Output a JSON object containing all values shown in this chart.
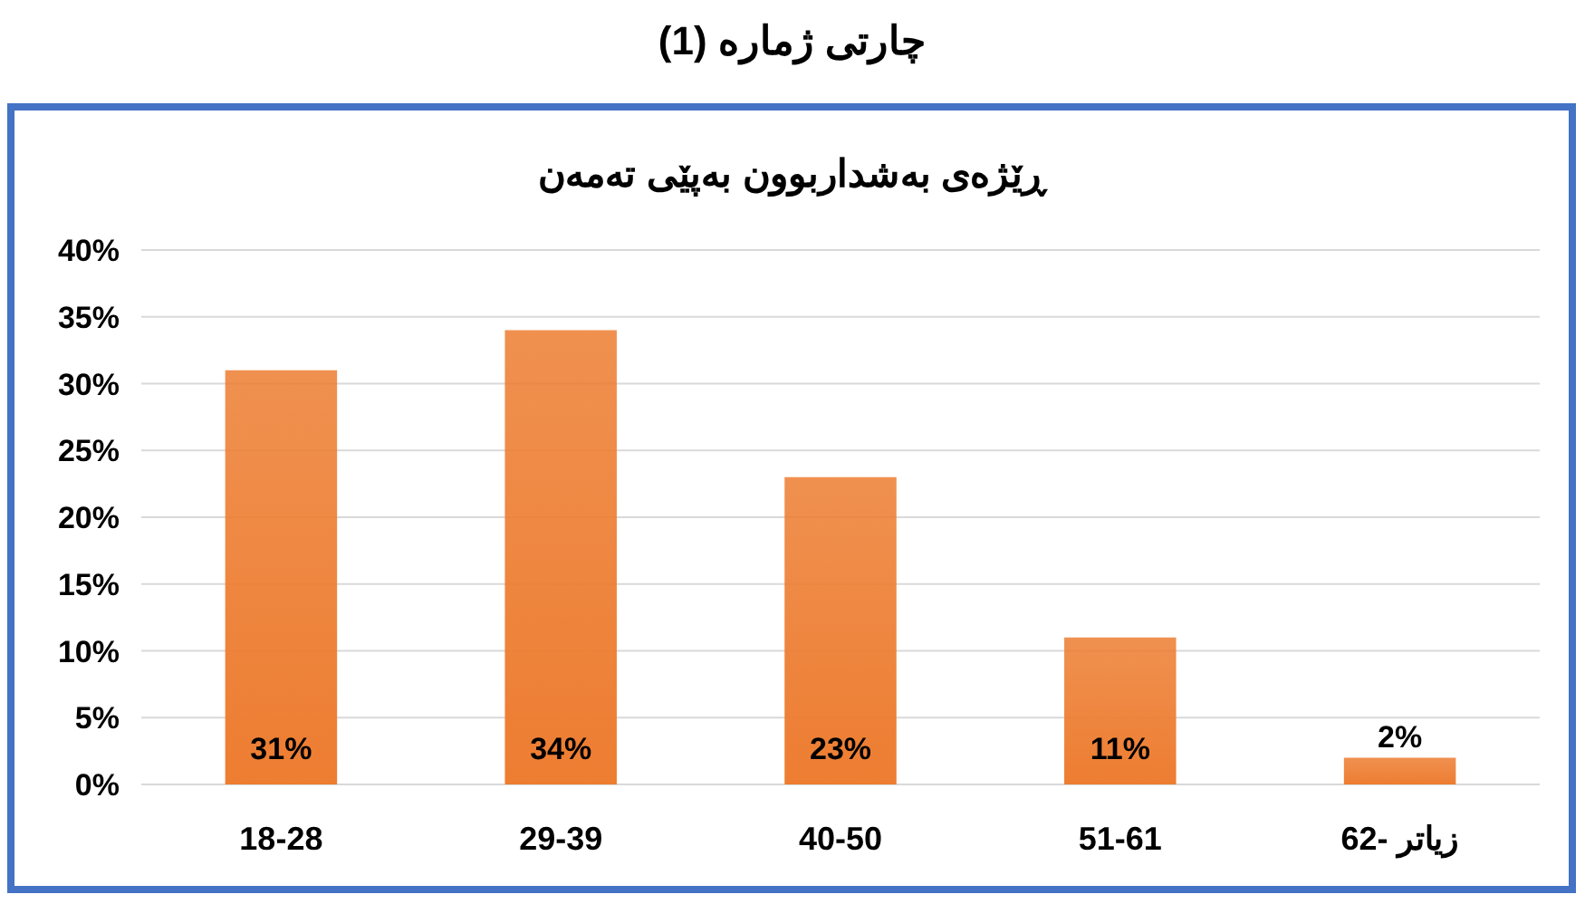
{
  "chart_data": {
    "type": "bar",
    "title": "چارتی ژماره (1)",
    "subtitle": "ڕێژەی بەشداربوون بەپێی تەمەن",
    "categories": [
      "18-28",
      "29-39",
      "40-50",
      "51-61",
      "62- زیاتر"
    ],
    "values": [
      31,
      34,
      23,
      11,
      2
    ],
    "color": "#ed7d31",
    "value_labels": [
      "31%",
      "34%",
      "23%",
      "11%",
      "2%"
    ],
    "ylim": [
      0,
      40
    ],
    "yticks": [
      {
        "value": 0,
        "label": "0%"
      },
      {
        "value": 5,
        "label": "5%"
      },
      {
        "value": 10,
        "label": "10%"
      },
      {
        "value": 15,
        "label": "15%"
      },
      {
        "value": 20,
        "label": "20%"
      },
      {
        "value": 25,
        "label": "25%"
      },
      {
        "value": 30,
        "label": "30%"
      },
      {
        "value": 35,
        "label": "35%"
      },
      {
        "value": 40,
        "label": "40%"
      }
    ],
    "grid": "y"
  }
}
